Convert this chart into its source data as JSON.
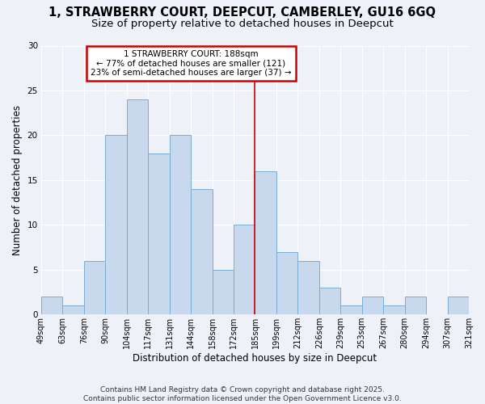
{
  "title_line1": "1, STRAWBERRY COURT, DEEPCUT, CAMBERLEY, GU16 6GQ",
  "title_line2": "Size of property relative to detached houses in Deepcut",
  "xlabel": "Distribution of detached houses by size in Deepcut",
  "ylabel": "Number of detached properties",
  "categories": [
    "49sqm",
    "63sqm",
    "76sqm",
    "90sqm",
    "104sqm",
    "117sqm",
    "131sqm",
    "144sqm",
    "158sqm",
    "172sqm",
    "185sqm",
    "199sqm",
    "212sqm",
    "226sqm",
    "239sqm",
    "253sqm",
    "267sqm",
    "280sqm",
    "294sqm",
    "307sqm",
    "321sqm"
  ],
  "values": [
    2,
    1,
    6,
    20,
    24,
    18,
    20,
    14,
    5,
    10,
    16,
    7,
    6,
    3,
    1,
    2,
    1,
    2,
    0,
    2
  ],
  "bar_color": "#c8d9ee",
  "bar_edge_color": "#7aadd4",
  "vline_x_index": 10,
  "vline_color": "#cc0000",
  "annotation_text": "1 STRAWBERRY COURT: 188sqm\n← 77% of detached houses are smaller (121)\n23% of semi-detached houses are larger (37) →",
  "annotation_box_color": "#ffffff",
  "annotation_box_edge_color": "#cc0000",
  "ylim": [
    0,
    30
  ],
  "yticks": [
    0,
    5,
    10,
    15,
    20,
    25,
    30
  ],
  "footer_text": "Contains HM Land Registry data © Crown copyright and database right 2025.\nContains public sector information licensed under the Open Government Licence v3.0.",
  "bg_color": "#eef2f8",
  "plot_bg_color": "#eef2f8",
  "grid_color": "#ffffff",
  "title_fontsize": 10.5,
  "subtitle_fontsize": 9.5,
  "tick_fontsize": 7,
  "label_fontsize": 8.5,
  "footer_fontsize": 6.5
}
